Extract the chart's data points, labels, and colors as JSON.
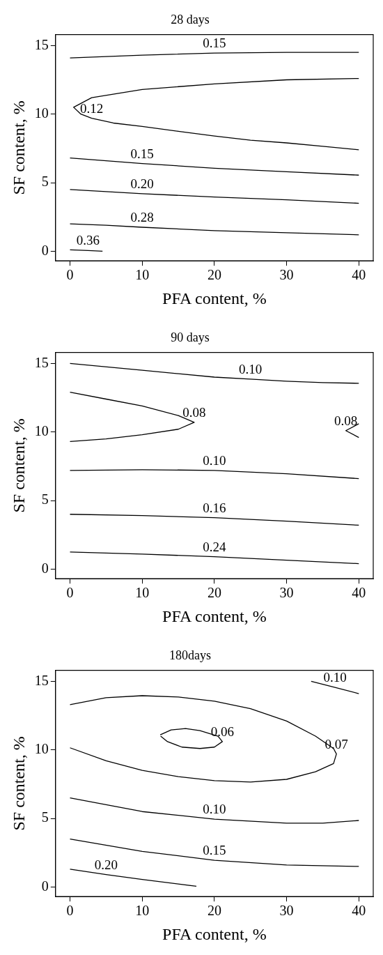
{
  "chart_data": [
    {
      "type": "line",
      "title": "28 days",
      "xlabel": "PFA content, %",
      "ylabel": "SF content, %",
      "xlim": [
        -2,
        42
      ],
      "ylim": [
        -0.7,
        15.8
      ],
      "xticks": [
        0,
        10,
        20,
        30,
        40
      ],
      "yticks": [
        0,
        5,
        10,
        15
      ],
      "marker": "none",
      "line_style": "solid",
      "series": [
        {
          "name": "0.15",
          "color": "#000000",
          "x": [
            0,
            10,
            20,
            30,
            40
          ],
          "values": [
            14.1,
            14.3,
            14.45,
            14.5,
            14.5
          ]
        },
        {
          "name": "0.12",
          "color": "#000000",
          "x": [
            40,
            30,
            20,
            10,
            3,
            0.5,
            1.5,
            3,
            6,
            10,
            15,
            20,
            25,
            30,
            35,
            40
          ],
          "values": [
            12.6,
            12.5,
            12.2,
            11.8,
            11.2,
            10.5,
            10.0,
            9.7,
            9.35,
            9.1,
            8.75,
            8.4,
            8.1,
            7.9,
            7.65,
            7.4
          ]
        },
        {
          "name": "0.15",
          "color": "#000000",
          "x": [
            0,
            5,
            10,
            20,
            30,
            40
          ],
          "values": [
            6.8,
            6.6,
            6.4,
            6.05,
            5.8,
            5.55
          ]
        },
        {
          "name": "0.20",
          "color": "#000000",
          "x": [
            0,
            5,
            10,
            20,
            30,
            40
          ],
          "values": [
            4.5,
            4.35,
            4.2,
            3.95,
            3.75,
            3.5
          ]
        },
        {
          "name": "0.28",
          "color": "#000000",
          "x": [
            0,
            5,
            10,
            20,
            30,
            40
          ],
          "values": [
            2.0,
            1.9,
            1.75,
            1.5,
            1.35,
            1.2
          ]
        },
        {
          "name": "0.36",
          "color": "#000000",
          "x": [
            0,
            2.5,
            4.5
          ],
          "values": [
            0.1,
            0.05,
            0.0
          ]
        }
      ]
    },
    {
      "type": "line",
      "title": "90 days",
      "xlabel": "PFA content, %",
      "ylabel": "SF content, %",
      "xlim": [
        -2,
        42
      ],
      "ylim": [
        -0.7,
        15.8
      ],
      "xticks": [
        0,
        10,
        20,
        30,
        40
      ],
      "yticks": [
        0,
        5,
        10,
        15
      ],
      "marker": "none",
      "line_style": "solid",
      "series": [
        {
          "name": "0.10",
          "color": "#000000",
          "x": [
            0,
            10,
            20,
            25,
            30,
            35,
            40
          ],
          "values": [
            15.0,
            14.5,
            14.0,
            13.85,
            13.7,
            13.6,
            13.55
          ]
        },
        {
          "name": "0.08",
          "color": "#000000",
          "x": [
            0,
            5,
            10,
            15,
            17.2,
            15,
            10,
            5,
            0
          ],
          "values": [
            12.9,
            12.4,
            11.9,
            11.2,
            10.7,
            10.2,
            9.8,
            9.5,
            9.3
          ]
        },
        {
          "name": "0.08",
          "color": "#000000",
          "x": [
            40,
            38.2,
            40
          ],
          "values": [
            10.6,
            10.1,
            9.6
          ]
        },
        {
          "name": "0.10",
          "color": "#000000",
          "x": [
            0,
            10,
            20,
            30,
            40
          ],
          "values": [
            7.2,
            7.25,
            7.2,
            6.95,
            6.6
          ]
        },
        {
          "name": "0.16",
          "color": "#000000",
          "x": [
            0,
            10,
            20,
            30,
            40
          ],
          "values": [
            4.0,
            3.9,
            3.75,
            3.5,
            3.2
          ]
        },
        {
          "name": "0.24",
          "color": "#000000",
          "x": [
            0,
            10,
            20,
            30,
            40
          ],
          "values": [
            1.25,
            1.1,
            0.9,
            0.65,
            0.4
          ]
        }
      ]
    },
    {
      "type": "line",
      "title": "180days",
      "xlabel": "PFA content, %",
      "ylabel": "SF content, %",
      "xlim": [
        -2,
        42
      ],
      "ylim": [
        -0.7,
        15.8
      ],
      "xticks": [
        0,
        10,
        20,
        30,
        40
      ],
      "yticks": [
        0,
        5,
        10,
        15
      ],
      "marker": "none",
      "line_style": "solid",
      "series": [
        {
          "name": "0.10",
          "color": "#000000",
          "x": [
            33.4,
            36.7,
            40
          ],
          "values": [
            15.0,
            14.55,
            14.1
          ]
        },
        {
          "name": "0.07",
          "color": "#000000",
          "x": [
            0,
            5,
            10,
            15,
            20,
            25,
            30,
            34,
            36.5,
            36.9,
            36.5,
            34,
            30,
            25,
            20,
            15,
            10,
            5,
            0
          ],
          "values": [
            13.3,
            13.8,
            13.95,
            13.85,
            13.55,
            13.0,
            12.1,
            11.0,
            10.1,
            9.7,
            9.0,
            8.4,
            7.85,
            7.65,
            7.75,
            8.05,
            8.5,
            9.2,
            10.15
          ]
        },
        {
          "name": "0.06",
          "color": "#000000",
          "x": [
            12.5,
            14,
            16,
            18,
            20.5,
            21.1,
            20,
            18,
            15.5,
            13.5,
            12.55
          ],
          "values": [
            11.1,
            11.45,
            11.55,
            11.4,
            11.0,
            10.6,
            10.2,
            10.1,
            10.2,
            10.6,
            11.0
          ]
        },
        {
          "name": "0.10",
          "color": "#000000",
          "x": [
            0,
            10,
            20,
            30,
            35,
            40
          ],
          "values": [
            6.5,
            5.5,
            4.95,
            4.65,
            4.65,
            4.85
          ]
        },
        {
          "name": "0.15",
          "color": "#000000",
          "x": [
            0,
            10,
            20,
            30,
            40
          ],
          "values": [
            3.5,
            2.6,
            1.95,
            1.6,
            1.5
          ]
        },
        {
          "name": "0.20",
          "color": "#000000",
          "x": [
            0,
            5,
            10,
            17.5
          ],
          "values": [
            1.3,
            0.9,
            0.55,
            0.05
          ]
        }
      ]
    }
  ]
}
